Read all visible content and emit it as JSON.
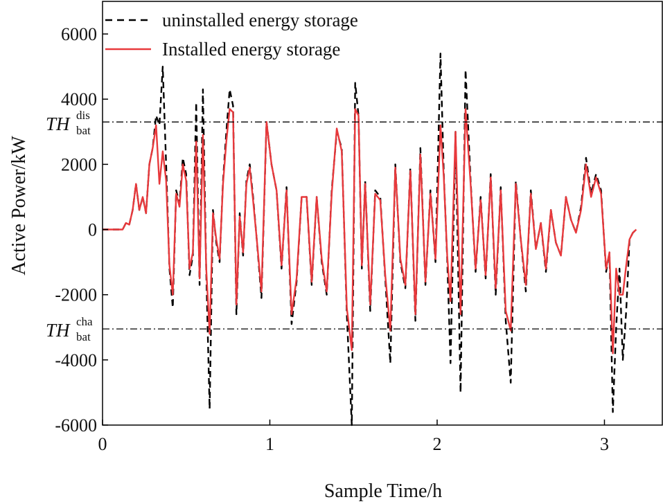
{
  "chart_data": {
    "type": "line",
    "xlabel": "Sample Time/h",
    "ylabel": "Active Power/kW",
    "xlim": [
      0,
      3.35
    ],
    "ylim": [
      -6000,
      7000
    ],
    "xticks": [
      0,
      1,
      2,
      3
    ],
    "xtick_labels": [
      "0",
      "1",
      "2",
      "3"
    ],
    "yticks": [
      -6000,
      -4000,
      -2000,
      0,
      2000,
      4000,
      6000
    ],
    "ytick_labels": [
      "-6000",
      "-4000",
      "-2000",
      "0",
      "2000",
      "4000",
      "6000"
    ],
    "legend_position": "top-left",
    "thresholds": [
      {
        "name": "discharge",
        "main": "TH",
        "sup": "dis",
        "sub": "bat",
        "value": 3300
      },
      {
        "name": "charge",
        "main": "TH",
        "sup": "cha",
        "sub": "bat",
        "value": -3050
      }
    ],
    "series": [
      {
        "name": "uninstalled energy storage",
        "color": "#000000",
        "style": "dashed",
        "x": [
          0,
          0.12,
          0.14,
          0.16,
          0.18,
          0.2,
          0.22,
          0.24,
          0.26,
          0.28,
          0.3,
          0.32,
          0.34,
          0.36,
          0.38,
          0.4,
          0.42,
          0.44,
          0.46,
          0.48,
          0.5,
          0.52,
          0.54,
          0.56,
          0.58,
          0.6,
          0.62,
          0.64,
          0.66,
          0.68,
          0.7,
          0.72,
          0.74,
          0.76,
          0.78,
          0.8,
          0.82,
          0.84,
          0.86,
          0.88,
          0.9,
          0.92,
          0.95,
          0.98,
          1.01,
          1.04,
          1.07,
          1.1,
          1.13,
          1.16,
          1.19,
          1.22,
          1.25,
          1.28,
          1.31,
          1.34,
          1.37,
          1.4,
          1.43,
          1.46,
          1.49,
          1.51,
          1.53,
          1.55,
          1.57,
          1.6,
          1.63,
          1.66,
          1.69,
          1.72,
          1.75,
          1.78,
          1.81,
          1.84,
          1.87,
          1.9,
          1.93,
          1.96,
          1.99,
          2.02,
          2.04,
          2.06,
          2.08,
          2.11,
          2.14,
          2.17,
          2.2,
          2.23,
          2.26,
          2.29,
          2.32,
          2.35,
          2.38,
          2.41,
          2.44,
          2.47,
          2.5,
          2.53,
          2.56,
          2.59,
          2.62,
          2.65,
          2.68,
          2.71,
          2.74,
          2.77,
          2.8,
          2.83,
          2.86,
          2.89,
          2.92,
          2.95,
          2.98,
          3.01,
          3.03,
          3.05,
          3.07,
          3.09,
          3.11,
          3.13,
          3.15,
          3.17,
          3.19
        ],
        "y": [
          0,
          0,
          200,
          150,
          600,
          1400,
          600,
          1000,
          500,
          2000,
          2500,
          3500,
          3200,
          5000,
          2000,
          -1200,
          -2400,
          1200,
          800,
          2200,
          1700,
          -1400,
          -800,
          3900,
          -1700,
          4300,
          -1300,
          -5500,
          600,
          -400,
          -1000,
          1500,
          3000,
          4300,
          3800,
          -2600,
          500,
          -800,
          1500,
          2000,
          1000,
          -200,
          -2100,
          3300,
          2000,
          1200,
          -1200,
          1300,
          -2900,
          -1600,
          1000,
          1000,
          -1700,
          1000,
          -1000,
          -2000,
          1200,
          3000,
          2500,
          -2600,
          -6000,
          4500,
          3500,
          -1200,
          1500,
          -2500,
          1200,
          1000,
          -1500,
          -4100,
          2000,
          -1000,
          -1800,
          1900,
          -2800,
          2500,
          -1700,
          1200,
          -1000,
          5400,
          1700,
          -900,
          -4100,
          3000,
          -5000,
          4900,
          1500,
          -1300,
          1000,
          -1500,
          1700,
          -2000,
          1300,
          -2800,
          -4700,
          1500,
          -300,
          -1900,
          1200,
          -600,
          200,
          -1300,
          600,
          -400,
          -800,
          1000,
          300,
          -100,
          700,
          2200,
          1100,
          1700,
          1200,
          -1300,
          -700,
          -5600,
          -3000,
          -1200,
          -4000,
          -2500,
          -300,
          -100,
          0
        ]
      },
      {
        "name": "Installed energy storage",
        "color": "#e8393c",
        "style": "solid",
        "x": [
          0,
          0.12,
          0.14,
          0.16,
          0.18,
          0.2,
          0.22,
          0.24,
          0.26,
          0.28,
          0.3,
          0.32,
          0.34,
          0.36,
          0.38,
          0.4,
          0.42,
          0.44,
          0.46,
          0.48,
          0.5,
          0.52,
          0.54,
          0.56,
          0.58,
          0.6,
          0.62,
          0.64,
          0.66,
          0.68,
          0.7,
          0.72,
          0.74,
          0.76,
          0.78,
          0.8,
          0.82,
          0.84,
          0.86,
          0.88,
          0.9,
          0.92,
          0.95,
          0.98,
          1.01,
          1.04,
          1.07,
          1.1,
          1.13,
          1.16,
          1.19,
          1.22,
          1.25,
          1.28,
          1.31,
          1.34,
          1.37,
          1.4,
          1.43,
          1.46,
          1.49,
          1.51,
          1.53,
          1.55,
          1.57,
          1.6,
          1.63,
          1.66,
          1.69,
          1.72,
          1.75,
          1.78,
          1.81,
          1.84,
          1.87,
          1.9,
          1.93,
          1.96,
          1.99,
          2.02,
          2.04,
          2.06,
          2.08,
          2.11,
          2.14,
          2.17,
          2.2,
          2.23,
          2.26,
          2.29,
          2.32,
          2.35,
          2.38,
          2.41,
          2.44,
          2.47,
          2.5,
          2.53,
          2.56,
          2.59,
          2.62,
          2.65,
          2.68,
          2.71,
          2.74,
          2.77,
          2.8,
          2.83,
          2.86,
          2.89,
          2.92,
          2.95,
          2.98,
          3.01,
          3.03,
          3.05,
          3.07,
          3.09,
          3.11,
          3.13,
          3.15,
          3.17,
          3.19
        ],
        "y": [
          0,
          0,
          200,
          150,
          600,
          1400,
          600,
          1000,
          500,
          2000,
          2500,
          3200,
          1400,
          2400,
          1500,
          -1100,
          -2000,
          1100,
          700,
          2000,
          1500,
          -1200,
          -700,
          2700,
          -1500,
          2900,
          -1200,
          -3200,
          500,
          -300,
          -900,
          1400,
          2700,
          3700,
          3600,
          -2300,
          400,
          -700,
          1400,
          1900,
          900,
          -200,
          -1900,
          3300,
          2000,
          1200,
          -1100,
          1200,
          -2600,
          -1500,
          1000,
          1000,
          -1600,
          1000,
          -900,
          -1900,
          1100,
          3100,
          2400,
          -2400,
          -3700,
          3700,
          3500,
          -1100,
          1400,
          -2300,
          1100,
          900,
          -1400,
          -3100,
          1900,
          -900,
          -1700,
          1800,
          -2600,
          2300,
          -1600,
          1100,
          -900,
          3200,
          1600,
          -800,
          -2200,
          3000,
          -2600,
          3700,
          1400,
          -1200,
          900,
          -1400,
          1600,
          -1800,
          1200,
          -2500,
          -3100,
          1400,
          -300,
          -1700,
          1100,
          -600,
          200,
          -1200,
          600,
          -400,
          -800,
          1000,
          300,
          -100,
          600,
          2000,
          1000,
          1600,
          1100,
          -1200,
          -700,
          -3800,
          -1200,
          -2000,
          -2000,
          -1100,
          -300,
          -100,
          0
        ]
      }
    ]
  }
}
